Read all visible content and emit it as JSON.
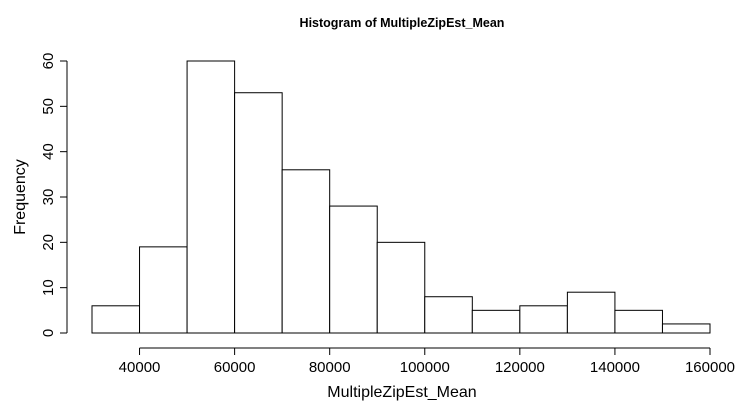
{
  "chart_data": {
    "type": "bar",
    "title": "Histogram of MultipleZipEst_Mean",
    "xlabel": "MultipleZipEst_Mean",
    "ylabel": "Frequency",
    "bins": [
      {
        "from": 30000,
        "to": 40000,
        "count": 6
      },
      {
        "from": 40000,
        "to": 50000,
        "count": 19
      },
      {
        "from": 50000,
        "to": 60000,
        "count": 60
      },
      {
        "from": 60000,
        "to": 70000,
        "count": 53
      },
      {
        "from": 70000,
        "to": 80000,
        "count": 36
      },
      {
        "from": 80000,
        "to": 90000,
        "count": 28
      },
      {
        "from": 90000,
        "to": 100000,
        "count": 20
      },
      {
        "from": 100000,
        "to": 110000,
        "count": 8
      },
      {
        "from": 110000,
        "to": 120000,
        "count": 5
      },
      {
        "from": 120000,
        "to": 130000,
        "count": 6
      },
      {
        "from": 130000,
        "to": 140000,
        "count": 9
      },
      {
        "from": 140000,
        "to": 150000,
        "count": 5
      },
      {
        "from": 150000,
        "to": 160000,
        "count": 2
      }
    ],
    "xlim": [
      30000,
      160000
    ],
    "ylim": [
      0,
      60
    ],
    "x_ticks": [
      40000,
      60000,
      80000,
      100000,
      120000,
      140000,
      160000
    ],
    "x_tick_labels": [
      "40000",
      "60000",
      "80000",
      "100000",
      "120000",
      "140000",
      "160000"
    ],
    "y_ticks": [
      0,
      10,
      20,
      30,
      40,
      50,
      60
    ],
    "y_tick_labels": [
      "0",
      "10",
      "20",
      "30",
      "40",
      "50",
      "60"
    ],
    "grid": false,
    "colors": {
      "bar_fill": "#ffffff",
      "bar_stroke": "#000000",
      "background": "#ffffff"
    }
  }
}
